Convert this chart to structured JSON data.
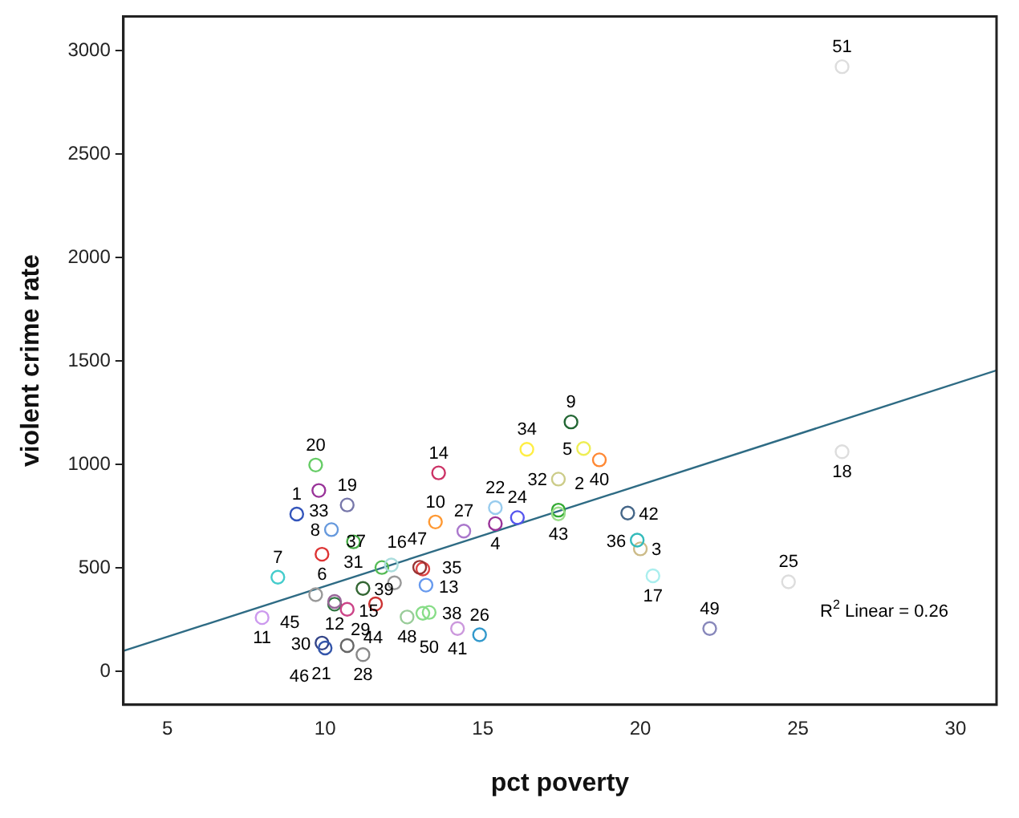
{
  "chart_data": {
    "type": "scatter",
    "xlabel": "pct poverty",
    "ylabel": "violent crime rate",
    "xlim": [
      3.6,
      31.3
    ],
    "ylim": [
      -160,
      3165
    ],
    "xticks": [
      5,
      10,
      15,
      20,
      25,
      30
    ],
    "yticks": [
      0,
      500,
      1000,
      1500,
      2000,
      2500,
      3000
    ],
    "grid": false,
    "legend": false,
    "series": [
      {
        "type": "scatter",
        "marker": "circle",
        "x": [
          9.1,
          17.4,
          20.0,
          15.4,
          18.2,
          9.9,
          8.5,
          10.2,
          17.8,
          13.5,
          8.0,
          10.3,
          13.1,
          13.6,
          12.2,
          13.1,
          20.4,
          26.4,
          10.7,
          9.7,
          10.7,
          15.4,
          11.6,
          16.1,
          24.7,
          14.9,
          14.4,
          11.2,
          10.3,
          9.9,
          10.9,
          17.4,
          9.8,
          16.4,
          13.0,
          19.9,
          11.8,
          13.2,
          11.2,
          18.7,
          14.2,
          19.6,
          17.4,
          10.7,
          9.7,
          10.0,
          12.1,
          12.6,
          22.2,
          13.3,
          26.4
        ],
        "values": [
          761,
          780,
          593,
          715,
          1078,
          567,
          456,
          686,
          1206,
          723,
          261,
          326,
          282,
          960,
          429,
          496,
          463,
          1062,
          805,
          998,
          126,
          792,
          327,
          744,
          434,
          178,
          679,
          82,
          339,
          138,
          627,
          930,
          875,
          1074,
          504,
          635,
          503,
          418,
          402,
          1023,
          208,
          766,
          762,
          301,
          372,
          114,
          515,
          264,
          208,
          286,
          2922
        ],
        "colors": [
          "#3355bb",
          "#33aa33",
          "#ccbb88",
          "#993399",
          "#eeee55",
          "#dd3333",
          "#44cccc",
          "#6699dd",
          "#226633",
          "#ff9933",
          "#cc99ee",
          "#337744",
          "#88dd88",
          "#cc3366",
          "#999999",
          "#dd4444",
          "#aaeeee",
          "#dddddd",
          "#7777aa",
          "#66cc66",
          "#666666",
          "#99ccee",
          "#cc3333",
          "#5555ee",
          "#dddddd",
          "#3399cc",
          "#aa77cc",
          "#888888",
          "#996699",
          "#334488",
          "#44aa44",
          "#cccc88",
          "#993399",
          "#ffee44",
          "#993333",
          "#33bbbb",
          "#55bb55",
          "#6699ee",
          "#336633",
          "#ff8833",
          "#cc99dd",
          "#446688",
          "#99dd88",
          "#cc4488",
          "#999999",
          "#3355aa",
          "#aadddd",
          "#99cc99",
          "#8888bb",
          "#88dd88",
          "#dddddd"
        ]
      },
      {
        "type": "line",
        "x": [
          3.6,
          31.3
        ],
        "values": [
          100,
          1455
        ],
        "color": "#2e6b84"
      }
    ],
    "annotations": [
      {
        "text": "1",
        "x": 9.1,
        "y": 761
      },
      {
        "text": "2",
        "x": 17.4,
        "y": 780
      },
      {
        "text": "3",
        "x": 20.0,
        "y": 593
      },
      {
        "text": "4",
        "x": 15.4,
        "y": 715
      },
      {
        "text": "5",
        "x": 18.2,
        "y": 1078
      },
      {
        "text": "6",
        "x": 9.9,
        "y": 567
      },
      {
        "text": "7",
        "x": 8.5,
        "y": 456
      },
      {
        "text": "8",
        "x": 10.2,
        "y": 686
      },
      {
        "text": "9",
        "x": 17.8,
        "y": 1206
      },
      {
        "text": "10",
        "x": 13.5,
        "y": 723
      },
      {
        "text": "11",
        "x": 8.0,
        "y": 261
      },
      {
        "text": "12",
        "x": 10.3,
        "y": 326
      },
      {
        "text": "13",
        "x": 13.1,
        "y": 282
      },
      {
        "text": "14",
        "x": 13.6,
        "y": 960
      },
      {
        "text": "15",
        "x": 12.2,
        "y": 429
      },
      {
        "text": "16",
        "x": 13.1,
        "y": 496
      },
      {
        "text": "17",
        "x": 20.4,
        "y": 463
      },
      {
        "text": "18",
        "x": 26.4,
        "y": 1062
      },
      {
        "text": "19",
        "x": 10.7,
        "y": 805
      },
      {
        "text": "20",
        "x": 9.7,
        "y": 998
      },
      {
        "text": "21",
        "x": 10.7,
        "y": 126
      },
      {
        "text": "22",
        "x": 15.4,
        "y": 792
      },
      {
        "text": "24",
        "x": 16.1,
        "y": 744
      },
      {
        "text": "25",
        "x": 24.7,
        "y": 434
      },
      {
        "text": "26",
        "x": 14.9,
        "y": 178
      },
      {
        "text": "27",
        "x": 14.4,
        "y": 679
      },
      {
        "text": "28",
        "x": 11.2,
        "y": 82
      },
      {
        "text": "29",
        "x": 10.3,
        "y": 339
      },
      {
        "text": "30",
        "x": 9.9,
        "y": 138
      },
      {
        "text": "31",
        "x": 10.9,
        "y": 627
      },
      {
        "text": "32",
        "x": 17.4,
        "y": 930
      },
      {
        "text": "33",
        "x": 9.8,
        "y": 875
      },
      {
        "text": "34",
        "x": 16.4,
        "y": 1074
      },
      {
        "text": "35",
        "x": 13.0,
        "y": 504
      },
      {
        "text": "36",
        "x": 19.9,
        "y": 635
      },
      {
        "text": "37",
        "x": 11.8,
        "y": 503
      },
      {
        "text": "38",
        "x": 13.2,
        "y": 418
      },
      {
        "text": "39",
        "x": 11.2,
        "y": 402
      },
      {
        "text": "40",
        "x": 18.7,
        "y": 1023
      },
      {
        "text": "41",
        "x": 14.2,
        "y": 208
      },
      {
        "text": "42",
        "x": 19.6,
        "y": 766
      },
      {
        "text": "43",
        "x": 17.4,
        "y": 762
      },
      {
        "text": "44",
        "x": 10.7,
        "y": 301
      },
      {
        "text": "45",
        "x": 9.7,
        "y": 372
      },
      {
        "text": "46",
        "x": 10.0,
        "y": 114
      },
      {
        "text": "47",
        "x": 12.1,
        "y": 515
      },
      {
        "text": "48",
        "x": 12.6,
        "y": 264
      },
      {
        "text": "49",
        "x": 22.2,
        "y": 208
      },
      {
        "text": "50",
        "x": 13.3,
        "y": 286
      },
      {
        "text": "51",
        "x": 26.4,
        "y": 2922
      },
      "R$^{2}$ Linear = 0.26"
    ]
  }
}
